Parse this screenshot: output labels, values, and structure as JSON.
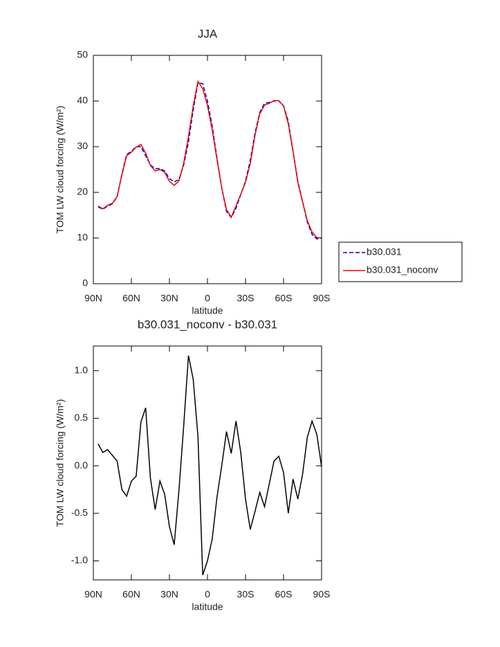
{
  "chart_data": [
    {
      "type": "line",
      "title": "JJA",
      "x_label": "latitude",
      "y_label": "TOM LW cloud forcing (W/m²)",
      "x": [
        86.25,
        82.5,
        78.75,
        75,
        71.25,
        67.5,
        63.75,
        60,
        56.25,
        52.5,
        48.75,
        45,
        41.25,
        37.5,
        33.75,
        30,
        26.25,
        22.5,
        18.75,
        15,
        11.25,
        7.5,
        3.75,
        0,
        -3.75,
        -7.5,
        -11.25,
        -15,
        -18.75,
        -22.5,
        -26.25,
        -30,
        -33.75,
        -37.5,
        -41.25,
        -45,
        -48.75,
        -52.5,
        -56.25,
        -60,
        -63.75,
        -67.5,
        -71.25,
        -75,
        -78.75,
        -82.5,
        -86.25,
        -90
      ],
      "series": [
        {
          "name": "b30.031",
          "color": "#0000cc",
          "line_style": "dashed",
          "values": [
            16.8,
            16.3,
            17.0,
            17.5,
            19.0,
            24.0,
            28.3,
            29.0,
            30.0,
            30.0,
            28.0,
            26.0,
            25.2,
            25.2,
            24.7,
            23.0,
            22.3,
            22.8,
            26.0,
            31.0,
            38.0,
            44.0,
            43.8,
            40.0,
            34.5,
            27.5,
            21.0,
            15.8,
            14.5,
            16.5,
            19.5,
            22.5,
            27.0,
            33.0,
            37.5,
            39.5,
            39.7,
            40.0,
            40.0,
            39.0,
            35.5,
            29.0,
            22.5,
            18.0,
            13.5,
            10.8,
            9.8,
            10.0
          ]
        },
        {
          "name": "b30.031_noconv",
          "color": "#ee0000",
          "line_style": "solid",
          "values": [
            17.0,
            16.4,
            17.2,
            17.6,
            19.1,
            23.8,
            28.0,
            28.8,
            29.9,
            30.5,
            28.6,
            25.9,
            24.7,
            25.0,
            24.4,
            22.4,
            21.5,
            22.5,
            26.4,
            32.2,
            38.9,
            44.3,
            42.7,
            39.0,
            33.7,
            27.2,
            21.0,
            16.2,
            14.6,
            17.0,
            19.6,
            22.2,
            26.3,
            32.5,
            37.2,
            39.1,
            39.5,
            40.1,
            40.1,
            38.9,
            35.0,
            28.9,
            22.2,
            17.9,
            13.8,
            11.3,
            10.1,
            10.0
          ]
        }
      ],
      "xlim": [
        90,
        -90
      ],
      "xticks": [
        {
          "value": 90,
          "label": "90N"
        },
        {
          "value": 60,
          "label": "60N"
        },
        {
          "value": 30,
          "label": "30N"
        },
        0,
        {
          "value": -30,
          "label": "30S"
        },
        {
          "value": -60,
          "label": "60S"
        },
        {
          "value": -90,
          "label": "90S"
        }
      ],
      "ylim": [
        0,
        50
      ],
      "yticks": [
        0,
        10,
        20,
        30,
        40,
        50
      ],
      "legend": "right"
    },
    {
      "type": "line",
      "title": "b30.031_noconv - b30.031",
      "x_label": "latitude",
      "y_label": "TOM LW cloud forcing (W/m²)",
      "x": [
        86.25,
        82.5,
        78.75,
        75,
        71.25,
        67.5,
        63.75,
        60,
        56.25,
        52.5,
        48.75,
        45,
        41.25,
        37.5,
        33.75,
        30,
        26.25,
        22.5,
        18.75,
        15,
        11.25,
        7.5,
        3.75,
        0,
        -3.75,
        -7.5,
        -11.25,
        -15,
        -18.75,
        -22.5,
        -26.25,
        -30,
        -33.75,
        -37.5,
        -41.25,
        -45,
        -48.75,
        -52.5,
        -56.25,
        -60,
        -63.75,
        -67.5,
        -71.25,
        -75,
        -78.75,
        -82.5,
        -86.25,
        -90
      ],
      "color": "#000000",
      "values": [
        0.23,
        0.14,
        0.17,
        0.11,
        0.05,
        -0.25,
        -0.32,
        -0.16,
        -0.11,
        0.46,
        0.61,
        -0.13,
        -0.46,
        -0.16,
        -0.3,
        -0.64,
        -0.83,
        -0.26,
        0.42,
        1.16,
        0.91,
        0.31,
        -1.15,
        -1.0,
        -0.77,
        -0.33,
        0.0,
        0.36,
        0.13,
        0.47,
        0.14,
        -0.35,
        -0.67,
        -0.48,
        -0.28,
        -0.43,
        -0.19,
        0.05,
        0.1,
        -0.07,
        -0.5,
        -0.14,
        -0.35,
        -0.09,
        0.3,
        0.47,
        0.33,
        -0.01
      ],
      "xlim": [
        90,
        -90
      ],
      "xticks": [
        {
          "value": 90,
          "label": "90N"
        },
        {
          "value": 60,
          "label": "60N"
        },
        {
          "value": 30,
          "label": "30N"
        },
        0,
        {
          "value": -30,
          "label": "30S"
        },
        {
          "value": -60,
          "label": "60S"
        },
        {
          "value": -90,
          "label": "90S"
        }
      ],
      "ylim": [
        -1.2,
        1.26
      ],
      "yticks": [
        {
          "value": -1,
          "label": "-1.0"
        },
        {
          "value": -0.5,
          "label": "-0.5"
        },
        {
          "value": 0,
          "label": "0.0"
        },
        0.5,
        {
          "value": 1,
          "label": "1.0"
        }
      ]
    }
  ]
}
